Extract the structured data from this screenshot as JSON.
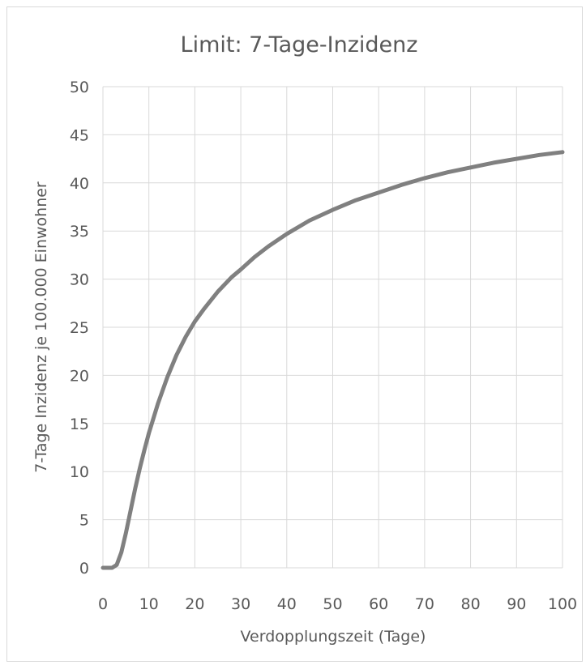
{
  "chart_data": {
    "type": "line",
    "title": "Limit: 7-Tage-Inzidenz",
    "xlabel": "Verdopplungszeit (Tage)",
    "ylabel": "7-Tage Inzidenz je 100.000 Einwohner",
    "xlim": [
      0,
      100
    ],
    "ylim": [
      0,
      50
    ],
    "x_ticks": [
      "0",
      "10",
      "20",
      "30",
      "40",
      "50",
      "60",
      "70",
      "80",
      "90",
      "100"
    ],
    "y_ticks": [
      "0",
      "5",
      "10",
      "15",
      "20",
      "25",
      "30",
      "35",
      "40",
      "45",
      "50"
    ],
    "grid": true,
    "legend": "none",
    "series": [
      {
        "color": "#808080",
        "x": [
          0,
          1,
          2,
          3,
          4,
          5,
          6,
          7,
          8,
          9,
          10,
          12,
          14,
          16,
          18,
          20,
          22,
          25,
          28,
          30,
          33,
          36,
          40,
          45,
          50,
          55,
          60,
          65,
          70,
          75,
          80,
          85,
          90,
          95,
          100
        ],
        "y": [
          0,
          0,
          0,
          0.3,
          1.6,
          3.6,
          5.9,
          8.2,
          10.3,
          12.2,
          14.0,
          17.1,
          19.8,
          22.1,
          24.0,
          25.6,
          26.9,
          28.7,
          30.2,
          31.0,
          32.3,
          33.4,
          34.7,
          36.1,
          37.2,
          38.2,
          39.0,
          39.8,
          40.5,
          41.1,
          41.6,
          42.1,
          42.5,
          42.9,
          43.2
        ]
      }
    ]
  }
}
